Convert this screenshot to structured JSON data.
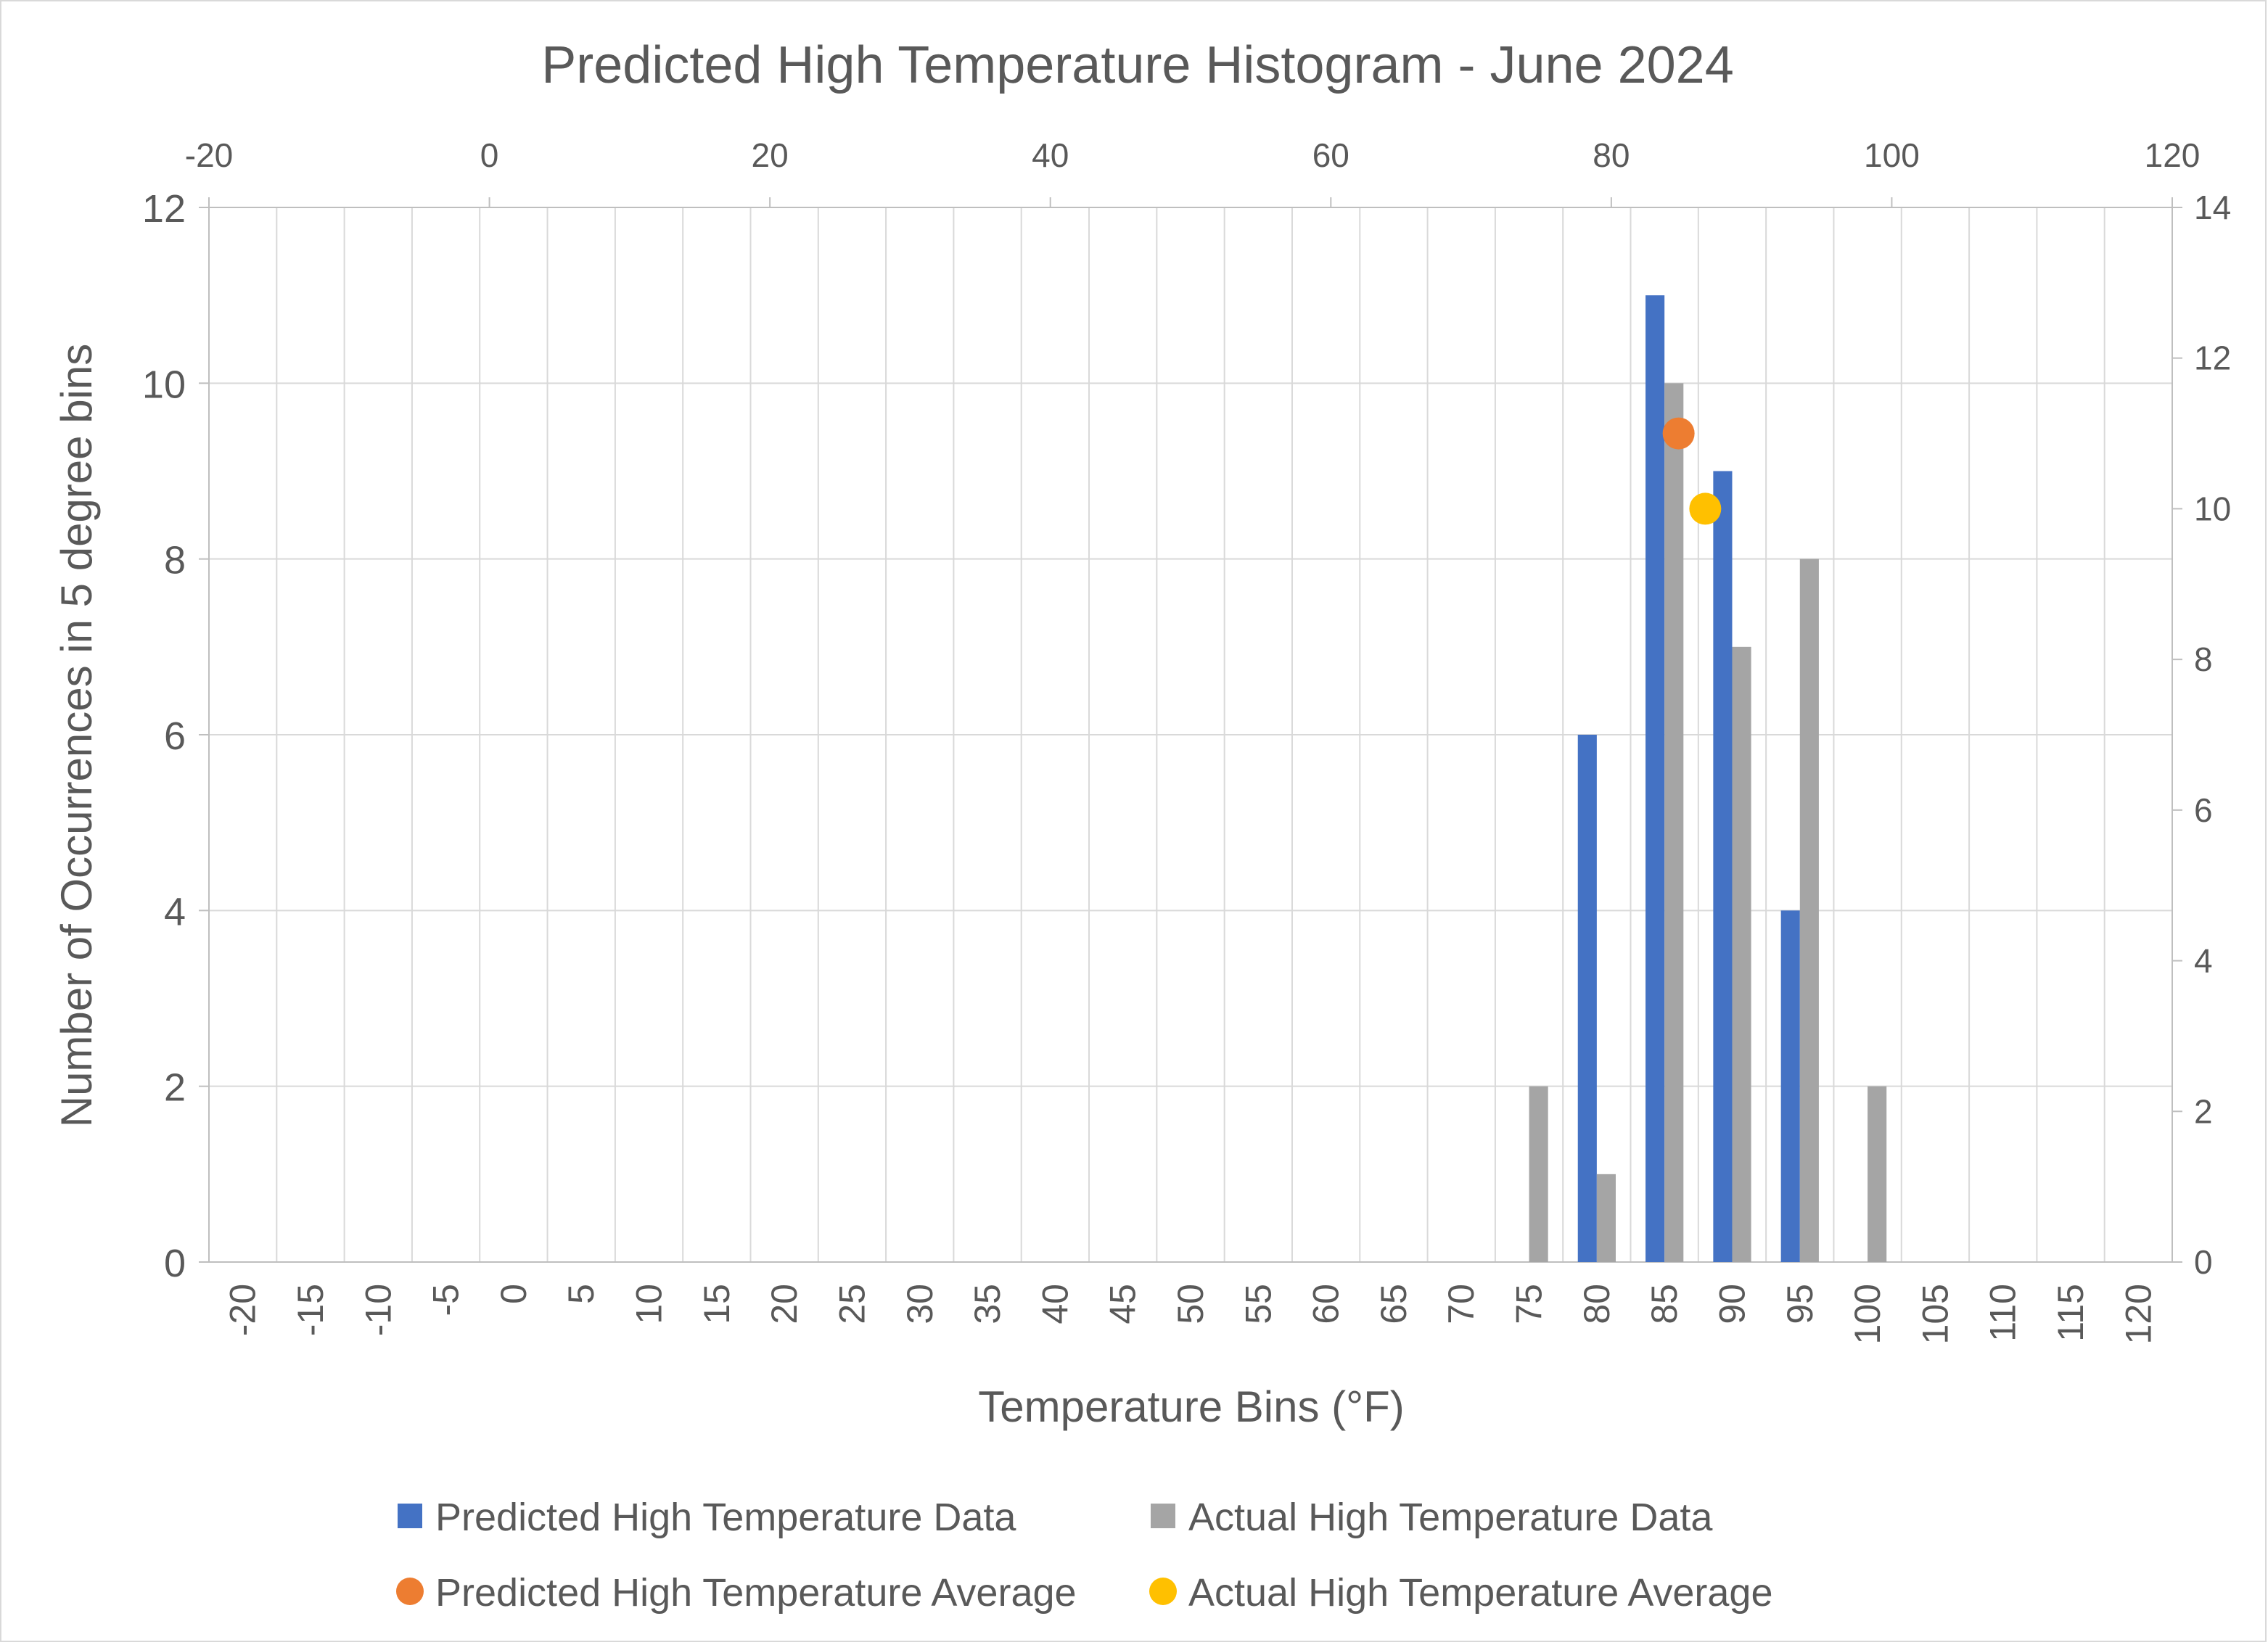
{
  "chart_data": {
    "type": "bar",
    "title": "Predicted High Temperature Histogram - June 2024",
    "xlabel": "Temperature Bins (°F)",
    "ylabel": "Number of Occurrences in 5 degree bins",
    "categories": [
      "-20",
      "-15",
      "-10",
      "-5",
      "0",
      "5",
      "10",
      "15",
      "20",
      "25",
      "30",
      "35",
      "40",
      "45",
      "50",
      "55",
      "60",
      "65",
      "70",
      "75",
      "80",
      "85",
      "90",
      "95",
      "100",
      "105",
      "110",
      "115",
      "120"
    ],
    "series": [
      {
        "name": "Predicted High Temperature Data",
        "color": "#4472c4",
        "values": [
          0,
          0,
          0,
          0,
          0,
          0,
          0,
          0,
          0,
          0,
          0,
          0,
          0,
          0,
          0,
          0,
          0,
          0,
          0,
          0,
          6,
          11,
          9,
          4,
          0,
          0,
          0,
          0,
          0
        ]
      },
      {
        "name": "Actual High Temperature Data",
        "color": "#a5a5a5",
        "values": [
          0,
          0,
          0,
          0,
          0,
          0,
          0,
          0,
          0,
          0,
          0,
          0,
          0,
          0,
          0,
          0,
          0,
          0,
          0,
          2,
          1,
          10,
          7,
          8,
          2,
          0,
          0,
          0,
          0
        ]
      }
    ],
    "averages": [
      {
        "name": "Predicted High Temperature Average",
        "color": "#ed7d31",
        "x": 84.8,
        "y": 11
      },
      {
        "name": "Actual High Temperature Average",
        "color": "#ffc000",
        "x": 86.7,
        "y": 10
      }
    ],
    "ylim": [
      0,
      12
    ],
    "yticks": [
      "0",
      "2",
      "4",
      "6",
      "8",
      "10",
      "12"
    ],
    "y2lim": [
      0,
      14
    ],
    "y2ticks": [
      "0",
      "2",
      "4",
      "6",
      "8",
      "10",
      "12",
      "14"
    ],
    "x2lim": [
      -20,
      120
    ],
    "x2ticks": [
      "-20",
      "0",
      "20",
      "40",
      "60",
      "80",
      "100",
      "120"
    ],
    "grid": true,
    "legend_position": "bottom"
  }
}
